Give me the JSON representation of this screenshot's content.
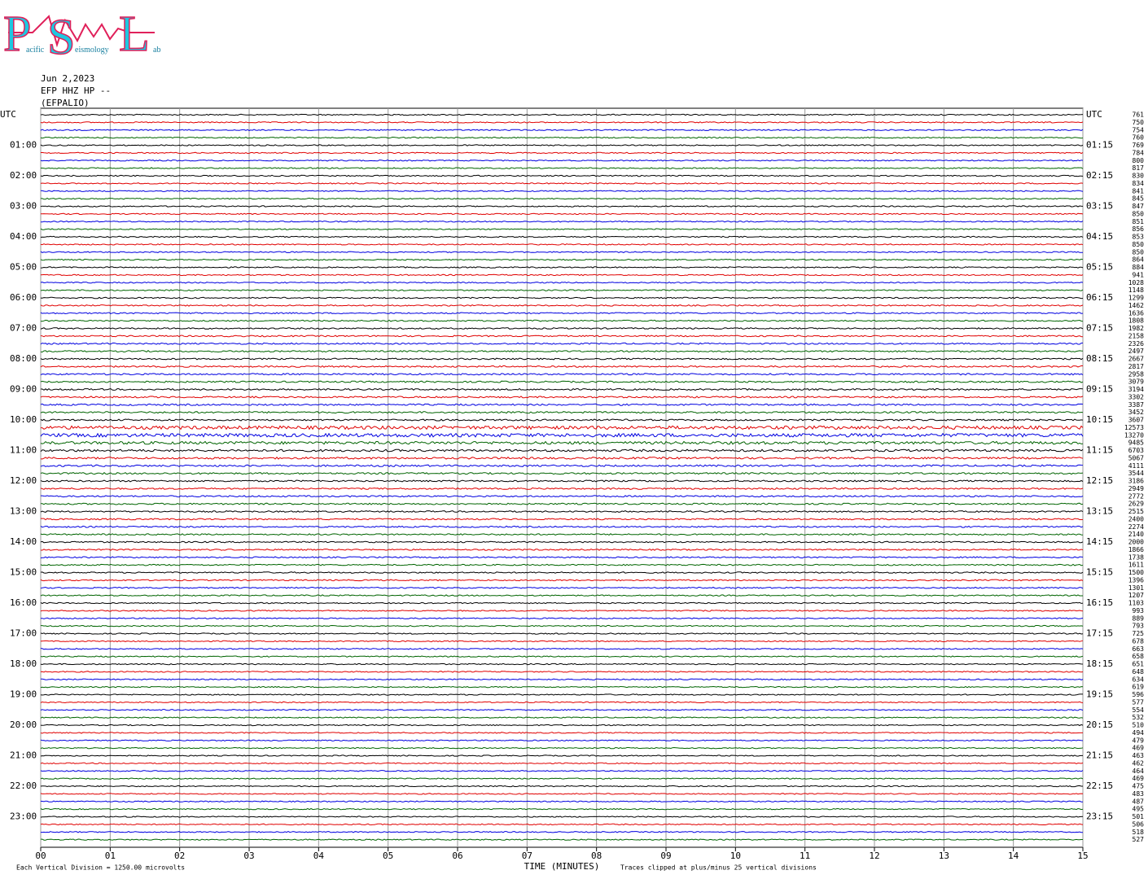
{
  "chart_data": {
    "type": "helicorder",
    "logo": {
      "letters": [
        "P",
        "S",
        "L"
      ],
      "words": [
        "acific",
        "eismology",
        "ab"
      ]
    },
    "header": [
      "Jun 2,2023",
      "EFP HHZ HP --",
      "(EFPALIO)"
    ],
    "xlabel": "TIME (MINUTES)",
    "footnote_left": "Each Vertical Division = 1250.00 microvolts",
    "footnote_right": "Traces clipped at plus/minus 25 vertical divisions",
    "xlim": [
      0,
      15
    ],
    "xticks": [
      {
        "value": 0,
        "label": "00"
      },
      {
        "value": 1,
        "label": "01"
      },
      {
        "value": 2,
        "label": "02"
      },
      {
        "value": 3,
        "label": "03"
      },
      {
        "value": 4,
        "label": "04"
      },
      {
        "value": 5,
        "label": "05"
      },
      {
        "value": 6,
        "label": "06"
      },
      {
        "value": 7,
        "label": "07"
      },
      {
        "value": 8,
        "label": "08"
      },
      {
        "value": 9,
        "label": "09"
      },
      10,
      11,
      12,
      13,
      14,
      15
    ],
    "grid": true,
    "colors": [
      "#000000",
      "#e00000",
      "#0000e0",
      "#006400"
    ],
    "left_labels": [
      "UTC",
      "01:00",
      "02:00",
      "03:00",
      "04:00",
      "05:00",
      "06:00",
      "07:00",
      "08:00",
      "09:00",
      "10:00",
      "11:00",
      "12:00",
      "13:00",
      "14:00",
      "15:00",
      "16:00",
      "17:00",
      "18:00",
      "19:00",
      "20:00",
      "21:00",
      "22:00",
      "23:00"
    ],
    "right_labels": [
      "UTC",
      "01:15",
      "02:15",
      "03:15",
      "04:15",
      "05:15",
      "06:15",
      "07:15",
      "08:15",
      "09:15",
      "10:15",
      "11:15",
      "12:15",
      "13:15",
      "14:15",
      "15:15",
      "16:15",
      "17:15",
      "18:15",
      "19:15",
      "20:15",
      "21:15",
      "22:15",
      "23:15"
    ],
    "rms": [
      761,
      750,
      754,
      760,
      769,
      784,
      800,
      817,
      830,
      834,
      841,
      845,
      847,
      850,
      851,
      856,
      853,
      850,
      850,
      864,
      884,
      941,
      1028,
      1148,
      1299,
      1462,
      1636,
      1808,
      1982,
      2158,
      2326,
      2497,
      2667,
      2817,
      2958,
      3079,
      3194,
      3302,
      3387,
      3452,
      3607,
      12573,
      13270,
      9485,
      6703,
      5067,
      4111,
      3544,
      3186,
      2949,
      2772,
      2629,
      2515,
      2400,
      2274,
      2140,
      2000,
      1866,
      1738,
      1611,
      1500,
      1396,
      1301,
      1207,
      1103,
      993,
      889,
      793,
      725,
      678,
      663,
      658,
      651,
      648,
      634,
      619,
      596,
      577,
      554,
      532,
      510,
      494,
      479,
      469,
      463,
      462,
      464,
      469,
      475,
      483,
      487,
      495,
      501,
      506,
      518,
      527
    ]
  }
}
